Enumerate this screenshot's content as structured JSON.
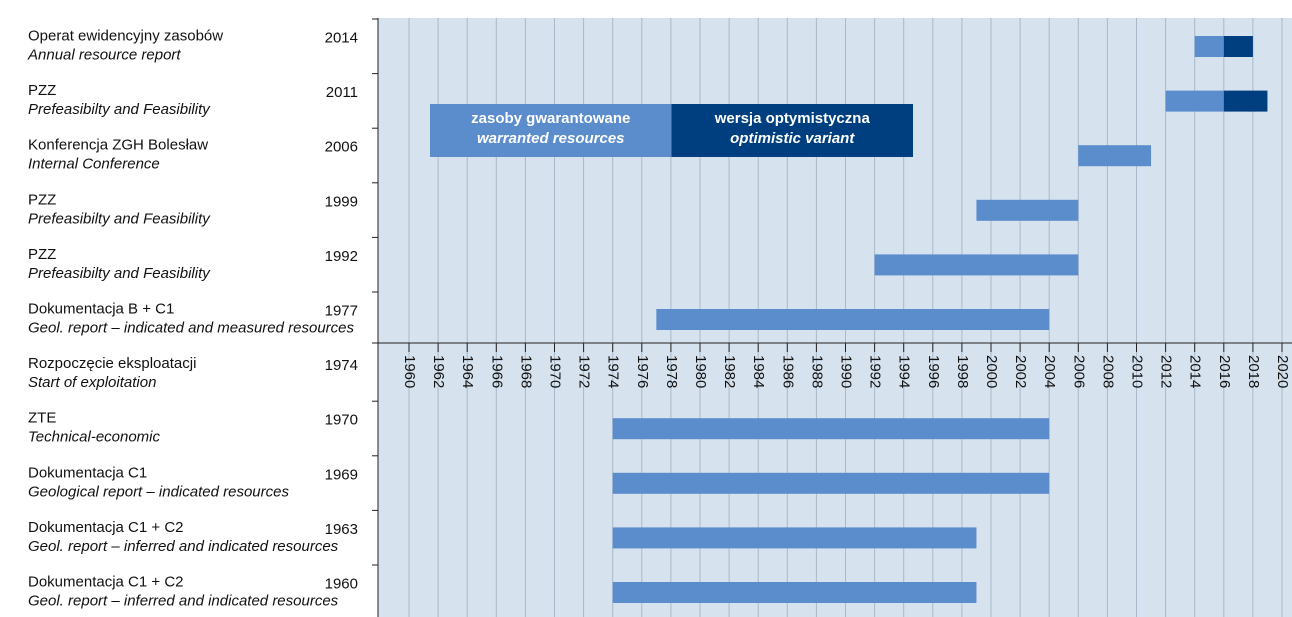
{
  "chart_data": {
    "type": "gantt",
    "rows": [
      {
        "label": "Operat ewidencyjny zasobów",
        "label_en": "Annual resource report",
        "year": "2014"
      },
      {
        "label": "PZZ",
        "label_en": "Prefeasibilty and Feasibility",
        "year": "2011"
      },
      {
        "label": "Konferencja ZGH Bolesław",
        "label_en": "Internal Conference",
        "year": "2006"
      },
      {
        "label": "PZZ",
        "label_en": "Prefeasibilty and Feasibility",
        "year": "1999"
      },
      {
        "label": "PZZ",
        "label_en": "Prefeasibilty and Feasibility",
        "year": "1992"
      },
      {
        "label": "Dokumentacja B + C1",
        "label_en": "Geol. report – indicated and measured resources",
        "year": "1977"
      },
      {
        "label": "Rozpoczęcie eksploatacji",
        "label_en": "Start of exploitation",
        "year": "1974"
      },
      {
        "label": "ZTE",
        "label_en": "Technical-economic",
        "year": "1970"
      },
      {
        "label": "Dokumentacja C1",
        "label_en": "Geological report – indicated resources",
        "year": "1969"
      },
      {
        "label": "Dokumentacja C1 + C2",
        "label_en": "Geol. report – inferred and indicated resources",
        "year": "1963"
      },
      {
        "label": "Dokumentacja C1 + C2",
        "label_en": "Geol. report – inferred and indicated resources",
        "year": "1960"
      }
    ],
    "series": [
      {
        "name": "zasoby gwarantowane",
        "name_en": "warranted resources",
        "color": "#5b8ccc",
        "starts": [
          2014,
          2012,
          2006,
          1999,
          1992,
          1977,
          null,
          1974,
          1974,
          1974,
          1974
        ],
        "ends": [
          2016,
          2016,
          2011,
          2006,
          2006,
          2004,
          null,
          2004,
          2004,
          1999,
          1999
        ]
      },
      {
        "name": "wersja optymistyczna",
        "name_en": "optimistic variant",
        "color": "#003f7f",
        "starts": [
          2016,
          2016,
          null,
          null,
          null,
          null,
          null,
          null,
          null,
          null,
          null
        ],
        "ends": [
          2018,
          2019,
          null,
          null,
          null,
          null,
          null,
          null,
          null,
          null,
          null
        ]
      }
    ],
    "xlim": [
      1958,
      2021
    ],
    "xticks": [
      1960,
      1962,
      1964,
      1966,
      1968,
      1970,
      1972,
      1974,
      1976,
      1978,
      1980,
      1982,
      1984,
      1986,
      1988,
      1990,
      1992,
      1994,
      1996,
      1998,
      2000,
      2002,
      2004,
      2006,
      2008,
      2010,
      2012,
      2014,
      2016,
      2018,
      2020
    ],
    "grid": true
  }
}
